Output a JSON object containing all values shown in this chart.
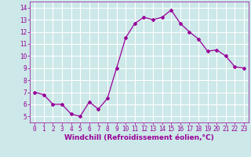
{
  "x": [
    0,
    1,
    2,
    3,
    4,
    5,
    6,
    7,
    8,
    9,
    10,
    11,
    12,
    13,
    14,
    15,
    16,
    17,
    18,
    19,
    20,
    21,
    22,
    23
  ],
  "y": [
    7.0,
    6.8,
    6.0,
    6.0,
    5.2,
    5.0,
    6.2,
    5.6,
    6.5,
    9.0,
    11.5,
    12.7,
    13.2,
    13.0,
    13.2,
    13.8,
    12.7,
    12.0,
    11.4,
    10.4,
    10.5,
    10.0,
    9.1,
    9.0
  ],
  "line_color": "#990099",
  "marker": "D",
  "markersize": 2.0,
  "linewidth": 0.9,
  "bg_color": "#cce8e8",
  "grid_color": "#ffffff",
  "xlabel": "Windchill (Refroidissement éolien,°C)",
  "xlabel_color": "#990099",
  "xlabel_fontsize": 6.5,
  "tick_color": "#990099",
  "tick_fontsize": 5.5,
  "ylim": [
    4.5,
    14.5
  ],
  "xlim": [
    -0.5,
    23.5
  ],
  "yticks": [
    5,
    6,
    7,
    8,
    9,
    10,
    11,
    12,
    13,
    14
  ],
  "xticks": [
    0,
    1,
    2,
    3,
    4,
    5,
    6,
    7,
    8,
    9,
    10,
    11,
    12,
    13,
    14,
    15,
    16,
    17,
    18,
    19,
    20,
    21,
    22,
    23
  ]
}
